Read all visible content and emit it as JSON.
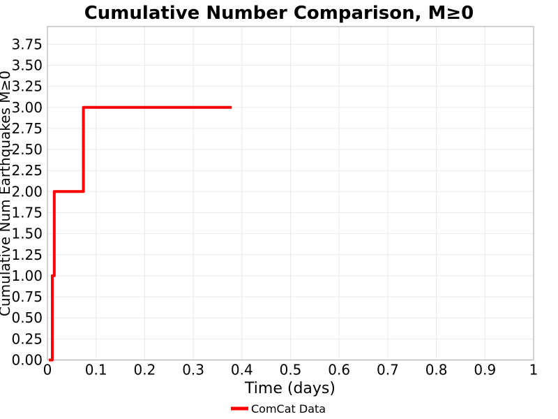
{
  "chart_data": {
    "type": "line",
    "line_style": "step",
    "title": "Cumulative Number Comparison, M≥0",
    "xlabel": "Time (days)",
    "ylabel": "Cumulative Num Earthquakes M≥0",
    "xlim": [
      0,
      1
    ],
    "ylim": [
      0,
      3.96
    ],
    "grid": true,
    "xtick_values": [
      0,
      0.1,
      0.2,
      0.3,
      0.4,
      0.5,
      0.6,
      0.7,
      0.8,
      0.9,
      1
    ],
    "xtick_labels": [
      "0",
      "0.1",
      "0.2",
      "0.3",
      "0.4",
      "0.5",
      "0.6",
      "0.7",
      "0.8",
      "0.9",
      "1"
    ],
    "ytick_values": [
      0,
      0.25,
      0.5,
      0.75,
      1,
      1.25,
      1.5,
      1.75,
      2,
      2.25,
      2.5,
      2.75,
      3,
      3.25,
      3.5,
      3.75
    ],
    "ytick_labels": [
      "0.00",
      "0.25",
      "0.50",
      "0.75",
      "1.00",
      "1.25",
      "1.50",
      "1.75",
      "2.00",
      "2.25",
      "2.50",
      "2.75",
      "3.00",
      "3.25",
      "3.50",
      "3.75"
    ],
    "legend": {
      "position": "bottom-center",
      "entries": [
        {
          "label": "ComCat Data",
          "color": "#ff0000"
        }
      ]
    },
    "series": [
      {
        "name": "ComCat Data",
        "color": "#ff0000",
        "linewidth": 4,
        "event_times_days": [
          0.01,
          0.014,
          0.074
        ],
        "end_time_days": 0.379,
        "cumulative_max": 3,
        "points": [
          [
            0.003,
            0
          ],
          [
            0.01,
            0
          ],
          [
            0.01,
            1
          ],
          [
            0.014,
            1
          ],
          [
            0.014,
            2
          ],
          [
            0.074,
            2
          ],
          [
            0.074,
            3
          ],
          [
            0.379,
            3
          ]
        ]
      }
    ],
    "colors": {
      "series": "#ff0000",
      "grid": "#e9e9e9",
      "spine": "#a6a6a6",
      "text": "#000000",
      "background": "#ffffff"
    }
  }
}
